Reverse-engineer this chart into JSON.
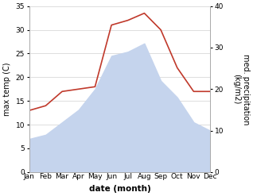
{
  "months": [
    "Jan",
    "Feb",
    "Mar",
    "Apr",
    "May",
    "Jun",
    "Jul",
    "Aug",
    "Sep",
    "Oct",
    "Nov",
    "Dec"
  ],
  "max_temp": [
    13.0,
    14.0,
    17.0,
    17.5,
    18.0,
    31.0,
    32.0,
    33.5,
    30.0,
    22.0,
    17.0,
    17.0
  ],
  "precipitation": [
    8.0,
    9.0,
    12.0,
    15.0,
    20.0,
    28.0,
    29.0,
    31.0,
    22.0,
    18.0,
    12.0,
    10.0
  ],
  "temp_ylim": [
    0,
    35
  ],
  "precip_ylim": [
    0,
    40
  ],
  "temp_yticks": [
    0,
    5,
    10,
    15,
    20,
    25,
    30,
    35
  ],
  "precip_yticks": [
    0,
    10,
    20,
    30,
    40
  ],
  "xlabel": "date (month)",
  "ylabel_left": "max temp (C)",
  "ylabel_right": "med. precipitation\n(kg/m2)",
  "line_color": "#c0392b",
  "fill_color": "#c5d4ed",
  "fill_alpha": 1.0,
  "background_color": "#ffffff",
  "label_fontsize": 7,
  "tick_fontsize": 6.5,
  "xlabel_fontsize": 7.5
}
